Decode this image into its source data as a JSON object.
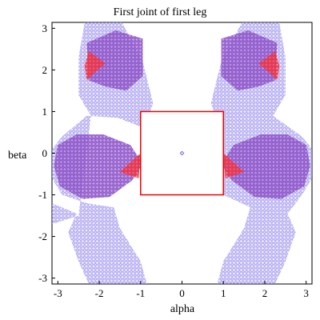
{
  "chart_data": {
    "type": "scatter",
    "title": "First joint of first leg",
    "xlabel": "alpha",
    "ylabel": "beta",
    "xlim": [
      -3.14159,
      3.14159
    ],
    "ylim": [
      -3.14159,
      3.14159
    ],
    "xticks": [
      "-3",
      "-2",
      "-1",
      "0",
      "1",
      "2",
      "3"
    ],
    "yticks": [
      "3",
      "2",
      "1",
      "0",
      "-1",
      "-2",
      "-3"
    ],
    "grid": false,
    "colors": {
      "reachable": "#a9a0f0",
      "overlap": "#8a4fc8",
      "singular": "#ee3344",
      "box": "#ee0000",
      "center": "#8060e0"
    },
    "series": [
      {
        "kind": "region",
        "color_key": "reachable",
        "polygons": [
          [
            [
              -2.35,
              3.14
            ],
            [
              -1.45,
              3.14
            ],
            [
              -0.95,
              2.2
            ],
            [
              -0.7,
              1.2
            ],
            [
              -0.9,
              0.6
            ],
            [
              -1.55,
              0.85
            ],
            [
              -2.3,
              0.9
            ],
            [
              -2.9,
              0.4
            ],
            [
              -3.14,
              0.1
            ],
            [
              -3.14,
              -0.6
            ],
            [
              -2.9,
              -1.0
            ],
            [
              -2.3,
              -1.2
            ],
            [
              -1.65,
              -1.3
            ],
            [
              -1.5,
              -1.8
            ],
            [
              -1.0,
              -2.6
            ],
            [
              -0.85,
              -3.14
            ],
            [
              -2.25,
              -3.14
            ],
            [
              -2.5,
              -2.6
            ],
            [
              -2.75,
              -1.9
            ],
            [
              -2.55,
              -1.45
            ],
            [
              -3.14,
              -1.2
            ],
            [
              -3.14,
              -1.7
            ],
            [
              -2.5,
              -1.5
            ],
            [
              -2.2,
              0.9
            ],
            [
              -2.5,
              1.4
            ],
            [
              -2.5,
              2.3
            ]
          ],
          [
            [
              1.45,
              3.14
            ],
            [
              2.35,
              3.14
            ],
            [
              2.5,
              2.3
            ],
            [
              2.5,
              1.4
            ],
            [
              2.2,
              0.9
            ],
            [
              2.9,
              0.4
            ],
            [
              3.14,
              0.1
            ],
            [
              3.14,
              -0.6
            ],
            [
              2.9,
              -1.0
            ],
            [
              2.55,
              -1.45
            ],
            [
              2.75,
              -1.9
            ],
            [
              2.5,
              -2.6
            ],
            [
              2.25,
              -3.14
            ],
            [
              0.85,
              -3.14
            ],
            [
              1.0,
              -2.6
            ],
            [
              1.5,
              -1.8
            ],
            [
              1.65,
              -1.3
            ],
            [
              1.0,
              -1.0
            ],
            [
              0.9,
              0.6
            ],
            [
              0.7,
              1.2
            ],
            [
              0.95,
              2.2
            ]
          ]
        ]
      },
      {
        "kind": "region",
        "color_key": "overlap",
        "polygons": [
          [
            [
              -2.3,
              2.65
            ],
            [
              -1.6,
              2.95
            ],
            [
              -0.95,
              2.75
            ],
            [
              -0.95,
              1.85
            ],
            [
              -1.35,
              1.5
            ],
            [
              -1.85,
              1.6
            ],
            [
              -2.25,
              1.75
            ]
          ],
          [
            [
              0.95,
              2.75
            ],
            [
              1.6,
              2.95
            ],
            [
              2.3,
              2.65
            ],
            [
              2.25,
              1.75
            ],
            [
              1.85,
              1.6
            ],
            [
              1.35,
              1.5
            ],
            [
              0.95,
              1.85
            ]
          ],
          [
            [
              -3.0,
              0.2
            ],
            [
              -2.55,
              0.45
            ],
            [
              -1.9,
              0.45
            ],
            [
              -1.25,
              0.2
            ],
            [
              -0.95,
              -0.25
            ],
            [
              -1.2,
              -0.65
            ],
            [
              -1.75,
              -1.05
            ],
            [
              -2.4,
              -1.1
            ],
            [
              -2.95,
              -0.8
            ],
            [
              -3.1,
              -0.3
            ]
          ],
          [
            [
              0.95,
              -0.25
            ],
            [
              1.25,
              0.2
            ],
            [
              1.9,
              0.45
            ],
            [
              2.55,
              0.45
            ],
            [
              3.0,
              0.2
            ],
            [
              3.1,
              -0.3
            ],
            [
              2.95,
              -0.8
            ],
            [
              2.4,
              -1.1
            ],
            [
              1.75,
              -1.05
            ],
            [
              1.2,
              -0.65
            ]
          ]
        ]
      },
      {
        "kind": "region",
        "color_key": "singular",
        "polygons": [
          [
            [
              -2.25,
              2.45
            ],
            [
              -1.85,
              2.15
            ],
            [
              -2.1,
              1.95
            ],
            [
              -2.3,
              1.75
            ],
            [
              -2.35,
              2.1
            ]
          ],
          [
            [
              2.25,
              2.45
            ],
            [
              2.35,
              2.1
            ],
            [
              2.3,
              1.75
            ],
            [
              2.1,
              1.95
            ],
            [
              1.85,
              2.15
            ]
          ],
          [
            [
              -1.0,
              0.0
            ],
            [
              -1.05,
              -0.6
            ],
            [
              -1.5,
              -0.45
            ]
          ],
          [
            [
              1.0,
              0.0
            ],
            [
              1.5,
              -0.45
            ],
            [
              1.05,
              -0.6
            ]
          ]
        ]
      },
      {
        "kind": "rectangle",
        "color_key": "box",
        "x": [
          -1,
          1
        ],
        "y": [
          -1,
          1
        ]
      },
      {
        "kind": "point",
        "color_key": "center",
        "x": 0,
        "y": 0
      }
    ]
  }
}
